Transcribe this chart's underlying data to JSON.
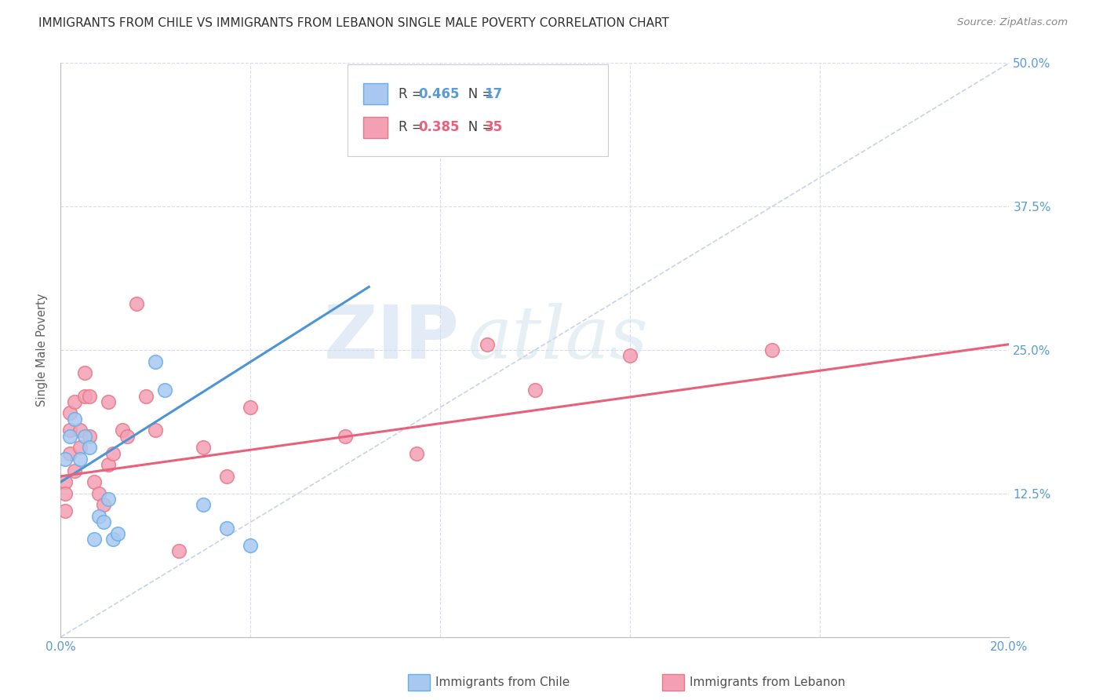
{
  "title": "IMMIGRANTS FROM CHILE VS IMMIGRANTS FROM LEBANON SINGLE MALE POVERTY CORRELATION CHART",
  "source": "Source: ZipAtlas.com",
  "ylabel": "Single Male Poverty",
  "xlim": [
    0.0,
    0.2
  ],
  "ylim": [
    0.0,
    0.5
  ],
  "xticks": [
    0.0,
    0.04,
    0.08,
    0.12,
    0.16,
    0.2
  ],
  "yticks": [
    0.0,
    0.125,
    0.25,
    0.375,
    0.5
  ],
  "xticklabels": [
    "0.0%",
    "",
    "",
    "",
    "",
    "20.0%"
  ],
  "yticklabels": [
    "",
    "12.5%",
    "25.0%",
    "37.5%",
    "50.0%"
  ],
  "chile_color": "#a8c8f0",
  "lebanon_color": "#f4a0b4",
  "chile_edge": "#6aaee8",
  "lebanon_edge": "#e8788a",
  "chile_line_color": "#4d94d4",
  "lebanon_line_color": "#e8607a",
  "ref_line_color": "#c8d4e4",
  "chile_R": 0.465,
  "chile_N": 17,
  "lebanon_R": 0.385,
  "lebanon_N": 35,
  "chile_x": [
    0.001,
    0.002,
    0.003,
    0.004,
    0.005,
    0.006,
    0.007,
    0.008,
    0.009,
    0.01,
    0.011,
    0.012,
    0.02,
    0.022,
    0.03,
    0.035,
    0.04
  ],
  "chile_y": [
    0.155,
    0.175,
    0.19,
    0.155,
    0.175,
    0.165,
    0.085,
    0.105,
    0.1,
    0.12,
    0.085,
    0.09,
    0.24,
    0.215,
    0.115,
    0.095,
    0.08
  ],
  "lebanon_x": [
    0.001,
    0.001,
    0.001,
    0.002,
    0.002,
    0.002,
    0.003,
    0.003,
    0.004,
    0.004,
    0.005,
    0.005,
    0.006,
    0.006,
    0.007,
    0.008,
    0.009,
    0.01,
    0.01,
    0.011,
    0.013,
    0.014,
    0.016,
    0.018,
    0.02,
    0.025,
    0.03,
    0.035,
    0.04,
    0.06,
    0.075,
    0.09,
    0.1,
    0.12,
    0.15
  ],
  "lebanon_y": [
    0.135,
    0.125,
    0.11,
    0.16,
    0.18,
    0.195,
    0.205,
    0.145,
    0.165,
    0.18,
    0.21,
    0.23,
    0.21,
    0.175,
    0.135,
    0.125,
    0.115,
    0.15,
    0.205,
    0.16,
    0.18,
    0.175,
    0.29,
    0.21,
    0.18,
    0.075,
    0.165,
    0.14,
    0.2,
    0.175,
    0.16,
    0.255,
    0.215,
    0.245,
    0.25
  ],
  "watermark_zip": "ZIP",
  "watermark_atlas": "atlas",
  "background_color": "#ffffff",
  "grid_color": "#d8dce8",
  "title_color": "#303030",
  "axis_label_color": "#5b9bd5",
  "tick_color": "#5b9bd5",
  "legend_color_chile": "#5b9bd5",
  "legend_color_lebanon": "#e8607a",
  "chile_line_x": [
    0.0,
    0.065
  ],
  "chile_line_y": [
    0.135,
    0.305
  ],
  "lebanon_line_x": [
    0.0,
    0.2
  ],
  "lebanon_line_y": [
    0.14,
    0.255
  ]
}
